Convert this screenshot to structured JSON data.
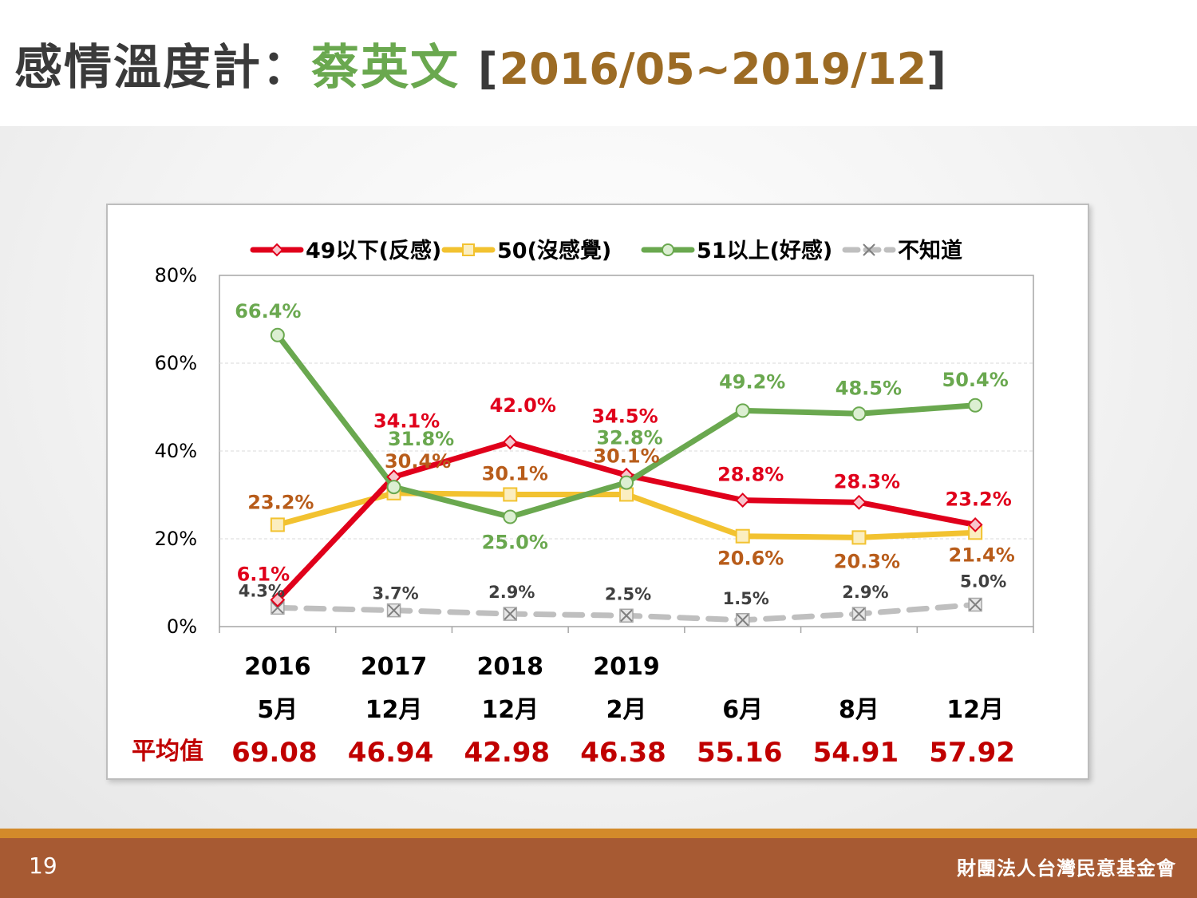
{
  "title": {
    "main": "感情溫度計：",
    "name": "蔡英文",
    "bracket_open": "[",
    "range": "2016/05~2019/12",
    "bracket_close": "]"
  },
  "footer": {
    "page_number": "19",
    "org_name": "財團法人台灣民意基金會"
  },
  "colors": {
    "red": "#e0001b",
    "yellow": "#f2c230",
    "green": "#6aa84f",
    "gray": "#bfbfbf",
    "orange_label": "#b85c1a",
    "dark_label": "#404040",
    "footer": "#a75a33",
    "footer_line": "#d38a2a"
  },
  "chart_data": {
    "type": "line",
    "title": "",
    "xlabel": "",
    "ylabel": "",
    "ylim": [
      0,
      80
    ],
    "yticks": [
      "0%",
      "20%",
      "40%",
      "60%",
      "80%"
    ],
    "grid": true,
    "legend_position": "top",
    "categories": [
      {
        "top": "2016",
        "bottom": "5月"
      },
      {
        "top": "2017",
        "bottom": "12月"
      },
      {
        "top": "2018",
        "bottom": "12月"
      },
      {
        "top": "2019",
        "bottom": "2月"
      },
      {
        "top": "",
        "bottom": "6月"
      },
      {
        "top": "",
        "bottom": "8月"
      },
      {
        "top": "",
        "bottom": "12月"
      }
    ],
    "series": [
      {
        "name": "49以下(反感)",
        "color": "#e0001b",
        "marker": "diamond",
        "dash": false,
        "values": [
          6.1,
          34.1,
          42.0,
          34.5,
          28.8,
          28.3,
          23.2
        ],
        "labels": [
          "6.1%",
          "34.1%",
          "42.0%",
          "34.5%",
          "28.8%",
          "28.3%",
          "23.2%"
        ]
      },
      {
        "name": "50(沒感覺)",
        "color": "#f2c230",
        "marker": "square",
        "dash": false,
        "values": [
          23.2,
          30.4,
          30.1,
          30.1,
          20.6,
          20.3,
          21.4
        ],
        "labels": [
          "23.2%",
          "30.4%",
          "30.1%",
          "30.1%",
          "20.6%",
          "20.3%",
          "21.4%"
        ]
      },
      {
        "name": "51以上(好感)",
        "color": "#6aa84f",
        "marker": "circle",
        "dash": false,
        "values": [
          66.4,
          31.8,
          25.0,
          32.8,
          49.2,
          48.5,
          50.4
        ],
        "labels": [
          "66.4%",
          "31.8%",
          "25.0%",
          "32.8%",
          "49.2%",
          "48.5%",
          "50.4%"
        ]
      },
      {
        "name": "不知道",
        "color": "#bfbfbf",
        "marker": "x",
        "dash": true,
        "values": [
          4.3,
          3.7,
          2.9,
          2.5,
          1.5,
          2.9,
          5.0
        ],
        "labels": [
          "4.3%",
          "3.7%",
          "2.9%",
          "2.5%",
          "1.5%",
          "2.9%",
          "5.0%"
        ]
      }
    ],
    "average": {
      "label": "平均值",
      "values": [
        "69.08",
        "46.94",
        "42.98",
        "46.38",
        "55.16",
        "54.91",
        "57.92"
      ]
    }
  }
}
